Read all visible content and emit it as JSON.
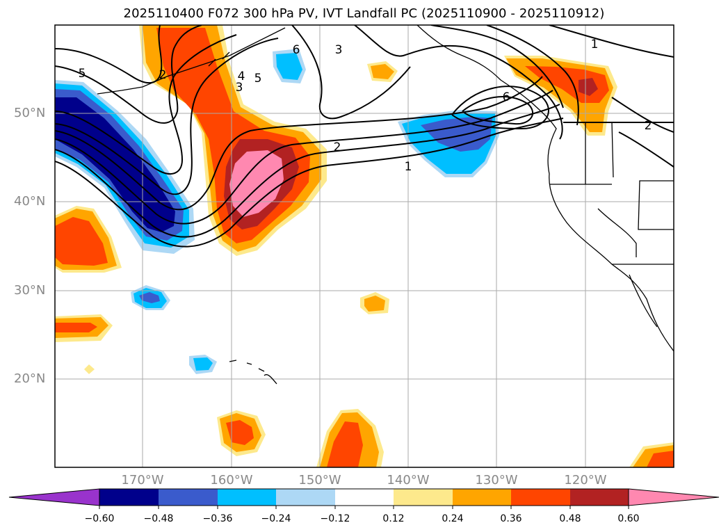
{
  "title": "2025110400 F072 300 hPa PV, IVT Landfall PC (2025110900 - 2025110912)",
  "lat_labels": [
    "50°N",
    "40°N",
    "30°N",
    "20°N"
  ],
  "lon_labels": [
    "170°W",
    "160°W",
    "150°W",
    "140°W",
    "130°W",
    "120°W"
  ],
  "colorbar": {
    "ticks": [
      "−0.60",
      "−0.48",
      "−0.36",
      "−0.24",
      "−0.12",
      "0.12",
      "0.24",
      "0.36",
      "0.48",
      "0.60"
    ],
    "colors": [
      "#9933cc",
      "#00008b",
      "#3a5bcc",
      "#00bfff",
      "#add8f5",
      "#ffffff",
      "#fde98c",
      "#ffa500",
      "#ff4500",
      "#b22222",
      "#ff88b0"
    ]
  },
  "contour_labels": [
    "5",
    "2",
    "4",
    "3",
    "5",
    "3",
    "6",
    "1",
    "2",
    "1",
    "6",
    "2"
  ]
}
